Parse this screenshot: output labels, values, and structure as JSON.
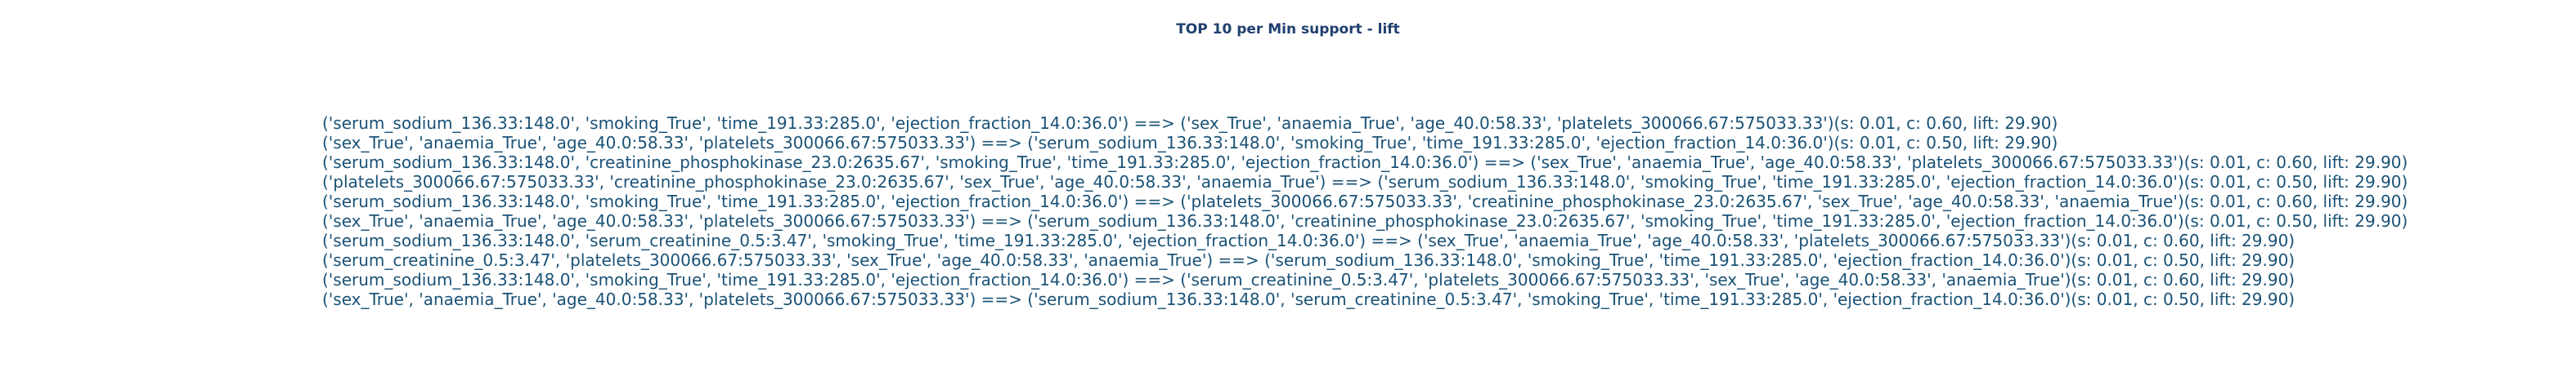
{
  "chart_data": {
    "type": "table",
    "title": "TOP 10 per Min support - lift",
    "title_color": "#1f3f6e",
    "text_color": "#1a5276",
    "rows": [
      {
        "antecedent": "('serum_sodium_136.33:148.0', 'smoking_True', 'time_191.33:285.0', 'ejection_fraction_14.0:36.0')",
        "consequent": "('sex_True', 'anaemia_True', 'age_40.0:58.33', 'platelets_300066.67:575033.33')",
        "support": 0.01,
        "confidence": 0.6,
        "lift": 29.9,
        "text": "('serum_sodium_136.33:148.0', 'smoking_True', 'time_191.33:285.0', 'ejection_fraction_14.0:36.0') ==> ('sex_True', 'anaemia_True', 'age_40.0:58.33', 'platelets_300066.67:575033.33')(s: 0.01, c: 0.60, lift: 29.90)"
      },
      {
        "antecedent": "('sex_True', 'anaemia_True', 'age_40.0:58.33', 'platelets_300066.67:575033.33')",
        "consequent": "('serum_sodium_136.33:148.0', 'smoking_True', 'time_191.33:285.0', 'ejection_fraction_14.0:36.0')",
        "support": 0.01,
        "confidence": 0.5,
        "lift": 29.9,
        "text": "('sex_True', 'anaemia_True', 'age_40.0:58.33', 'platelets_300066.67:575033.33') ==> ('serum_sodium_136.33:148.0', 'smoking_True', 'time_191.33:285.0', 'ejection_fraction_14.0:36.0')(s: 0.01, c: 0.50, lift: 29.90)"
      },
      {
        "antecedent": "('serum_sodium_136.33:148.0', 'creatinine_phosphokinase_23.0:2635.67', 'smoking_True', 'time_191.33:285.0', 'ejection_fraction_14.0:36.0')",
        "consequent": "('sex_True', 'anaemia_True', 'age_40.0:58.33', 'platelets_300066.67:575033.33')",
        "support": 0.01,
        "confidence": 0.6,
        "lift": 29.9,
        "text": "('serum_sodium_136.33:148.0', 'creatinine_phosphokinase_23.0:2635.67', 'smoking_True', 'time_191.33:285.0', 'ejection_fraction_14.0:36.0') ==> ('sex_True', 'anaemia_True', 'age_40.0:58.33', 'platelets_300066.67:575033.33')(s: 0.01, c: 0.60, lift: 29.90)"
      },
      {
        "antecedent": "('platelets_300066.67:575033.33', 'creatinine_phosphokinase_23.0:2635.67', 'sex_True', 'age_40.0:58.33', 'anaemia_True')",
        "consequent": "('serum_sodium_136.33:148.0', 'smoking_True', 'time_191.33:285.0', 'ejection_fraction_14.0:36.0')",
        "support": 0.01,
        "confidence": 0.5,
        "lift": 29.9,
        "text": "('platelets_300066.67:575033.33', 'creatinine_phosphokinase_23.0:2635.67', 'sex_True', 'age_40.0:58.33', 'anaemia_True') ==> ('serum_sodium_136.33:148.0', 'smoking_True', 'time_191.33:285.0', 'ejection_fraction_14.0:36.0')(s: 0.01, c: 0.50, lift: 29.90)"
      },
      {
        "antecedent": "('serum_sodium_136.33:148.0', 'smoking_True', 'time_191.33:285.0', 'ejection_fraction_14.0:36.0')",
        "consequent": "('platelets_300066.67:575033.33', 'creatinine_phosphokinase_23.0:2635.67', 'sex_True', 'age_40.0:58.33', 'anaemia_True')",
        "support": 0.01,
        "confidence": 0.6,
        "lift": 29.9,
        "text": "('serum_sodium_136.33:148.0', 'smoking_True', 'time_191.33:285.0', 'ejection_fraction_14.0:36.0') ==> ('platelets_300066.67:575033.33', 'creatinine_phosphokinase_23.0:2635.67', 'sex_True', 'age_40.0:58.33', 'anaemia_True')(s: 0.01, c: 0.60, lift: 29.90)"
      },
      {
        "antecedent": "('sex_True', 'anaemia_True', 'age_40.0:58.33', 'platelets_300066.67:575033.33')",
        "consequent": "('serum_sodium_136.33:148.0', 'creatinine_phosphokinase_23.0:2635.67', 'smoking_True', 'time_191.33:285.0', 'ejection_fraction_14.0:36.0')",
        "support": 0.01,
        "confidence": 0.5,
        "lift": 29.9,
        "text": "('sex_True', 'anaemia_True', 'age_40.0:58.33', 'platelets_300066.67:575033.33') ==> ('serum_sodium_136.33:148.0', 'creatinine_phosphokinase_23.0:2635.67', 'smoking_True', 'time_191.33:285.0', 'ejection_fraction_14.0:36.0')(s: 0.01, c: 0.50, lift: 29.90)"
      },
      {
        "antecedent": "('serum_sodium_136.33:148.0', 'serum_creatinine_0.5:3.47', 'smoking_True', 'time_191.33:285.0', 'ejection_fraction_14.0:36.0')",
        "consequent": "('sex_True', 'anaemia_True', 'age_40.0:58.33', 'platelets_300066.67:575033.33')",
        "support": 0.01,
        "confidence": 0.6,
        "lift": 29.9,
        "text": "('serum_sodium_136.33:148.0', 'serum_creatinine_0.5:3.47', 'smoking_True', 'time_191.33:285.0', 'ejection_fraction_14.0:36.0') ==> ('sex_True', 'anaemia_True', 'age_40.0:58.33', 'platelets_300066.67:575033.33')(s: 0.01, c: 0.60, lift: 29.90)"
      },
      {
        "antecedent": "('serum_creatinine_0.5:3.47', 'platelets_300066.67:575033.33', 'sex_True', 'age_40.0:58.33', 'anaemia_True')",
        "consequent": "('serum_sodium_136.33:148.0', 'smoking_True', 'time_191.33:285.0', 'ejection_fraction_14.0:36.0')",
        "support": 0.01,
        "confidence": 0.5,
        "lift": 29.9,
        "text": "('serum_creatinine_0.5:3.47', 'platelets_300066.67:575033.33', 'sex_True', 'age_40.0:58.33', 'anaemia_True') ==> ('serum_sodium_136.33:148.0', 'smoking_True', 'time_191.33:285.0', 'ejection_fraction_14.0:36.0')(s: 0.01, c: 0.50, lift: 29.90)"
      },
      {
        "antecedent": "('serum_sodium_136.33:148.0', 'smoking_True', 'time_191.33:285.0', 'ejection_fraction_14.0:36.0')",
        "consequent": "('serum_creatinine_0.5:3.47', 'platelets_300066.67:575033.33', 'sex_True', 'age_40.0:58.33', 'anaemia_True')",
        "support": 0.01,
        "confidence": 0.6,
        "lift": 29.9,
        "text": "('serum_sodium_136.33:148.0', 'smoking_True', 'time_191.33:285.0', 'ejection_fraction_14.0:36.0') ==> ('serum_creatinine_0.5:3.47', 'platelets_300066.67:575033.33', 'sex_True', 'age_40.0:58.33', 'anaemia_True')(s: 0.01, c: 0.60, lift: 29.90)"
      },
      {
        "antecedent": "('sex_True', 'anaemia_True', 'age_40.0:58.33', 'platelets_300066.67:575033.33')",
        "consequent": "('serum_sodium_136.33:148.0', 'serum_creatinine_0.5:3.47', 'smoking_True', 'time_191.33:285.0', 'ejection_fraction_14.0:36.0')",
        "support": 0.01,
        "confidence": 0.5,
        "lift": 29.9,
        "text": "('sex_True', 'anaemia_True', 'age_40.0:58.33', 'platelets_300066.67:575033.33') ==> ('serum_sodium_136.33:148.0', 'serum_creatinine_0.5:3.47', 'smoking_True', 'time_191.33:285.0', 'ejection_fraction_14.0:36.0')(s: 0.01, c: 0.50, lift: 29.90)"
      }
    ]
  }
}
